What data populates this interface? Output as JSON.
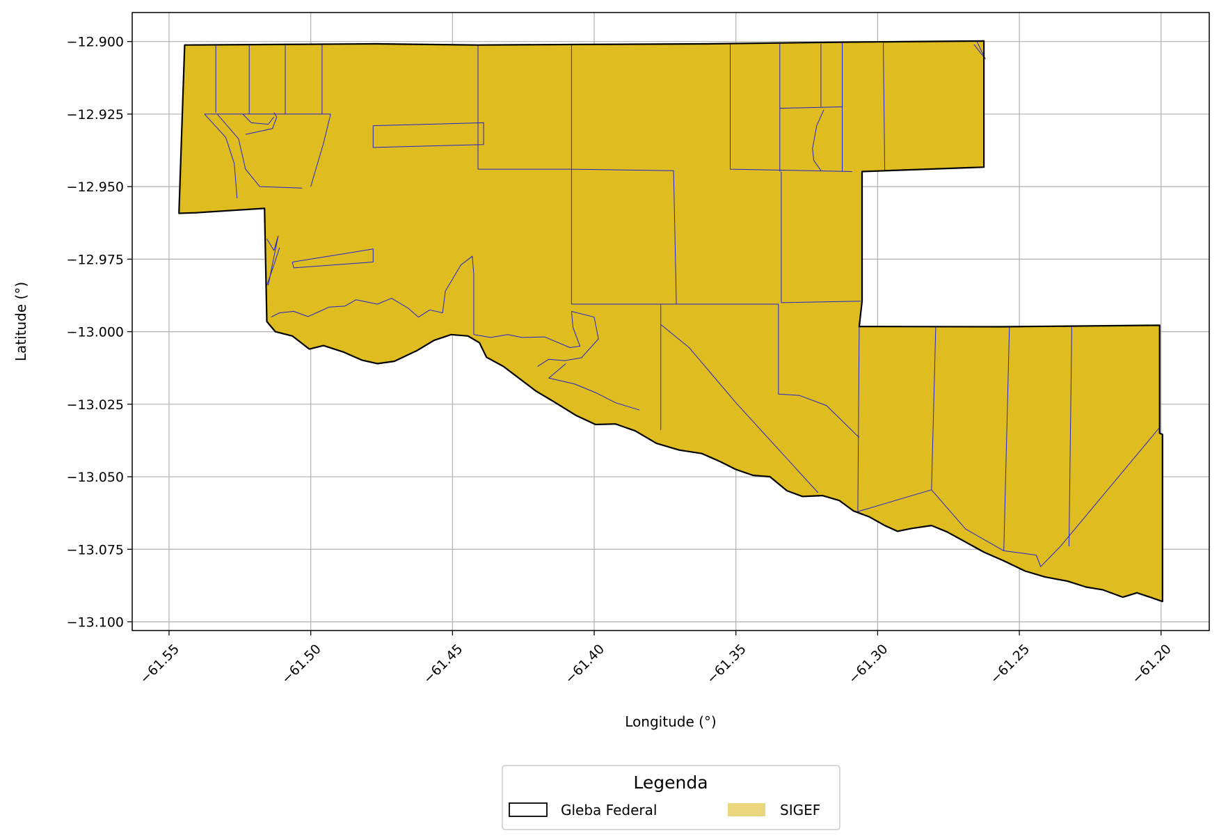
{
  "chart_data": {
    "type": "map",
    "xlabel": "Longitude (°)",
    "ylabel": "Latitude (°)",
    "xlim": [
      -61.563,
      -61.183
    ],
    "ylim": [
      -13.103,
      -12.89
    ],
    "x_ticks": [
      -61.55,
      -61.5,
      -61.45,
      -61.4,
      -61.35,
      -61.3,
      -61.25,
      -61.2
    ],
    "x_tick_labels": [
      "−61.55",
      "−61.50",
      "−61.45",
      "−61.40",
      "−61.35",
      "−61.30",
      "−61.25",
      "−61.20"
    ],
    "y_ticks": [
      -12.9,
      -12.925,
      -12.95,
      -12.975,
      -13.0,
      -13.025,
      -13.05,
      -13.075,
      -13.1
    ],
    "y_tick_labels": [
      "−12.900",
      "−12.925",
      "−12.950",
      "−12.975",
      "−13.000",
      "−13.025",
      "−13.050",
      "−13.075",
      "−13.100"
    ],
    "grid": true,
    "legend": {
      "title": "Legenda",
      "position": "bottom-center",
      "entries": [
        {
          "label": "Gleba Federal",
          "style": "outline",
          "edge_color": "#000000"
        },
        {
          "label": "SIGEF",
          "style": "fill",
          "fill_color": "#ead67c"
        }
      ]
    },
    "colors": {
      "parcel_fill": "#dfbd20",
      "parcel_edge": "#2222cc",
      "gleba_edge": "#000000",
      "grid": "#b0b0b0"
    },
    "gleba_federal_outline": [
      [
        -61.5445,
        -12.9012
      ],
      [
        -61.512,
        -12.901
      ],
      [
        -61.477,
        -12.9008
      ],
      [
        -61.441,
        -12.9012
      ],
      [
        -61.405,
        -12.901
      ],
      [
        -61.36,
        -12.9008
      ],
      [
        -61.31,
        -12.9002
      ],
      [
        -61.2625,
        -12.8998
      ],
      [
        -61.2625,
        -12.9433
      ],
      [
        -61.3055,
        -12.9448
      ],
      [
        -61.3055,
        -12.9895
      ],
      [
        -61.3065,
        -12.9982
      ],
      [
        -61.2565,
        -12.9983
      ],
      [
        -61.2005,
        -12.9978
      ],
      [
        -61.2005,
        -13.035
      ],
      [
        -61.1995,
        -13.0354
      ],
      [
        -61.1995,
        -13.093
      ],
      [
        -61.203,
        -13.0918
      ],
      [
        -61.2085,
        -13.09
      ],
      [
        -61.2135,
        -13.0915
      ],
      [
        -61.2205,
        -13.089
      ],
      [
        -61.2265,
        -13.088
      ],
      [
        -61.233,
        -13.086
      ],
      [
        -61.241,
        -13.0845
      ],
      [
        -61.248,
        -13.0825
      ],
      [
        -61.2555,
        -13.079
      ],
      [
        -61.2625,
        -13.076
      ],
      [
        -61.269,
        -13.0725
      ],
      [
        -61.2755,
        -13.069
      ],
      [
        -61.281,
        -13.0668
      ],
      [
        -61.288,
        -13.0678
      ],
      [
        -61.293,
        -13.0688
      ],
      [
        -61.2975,
        -13.0668
      ],
      [
        -61.303,
        -13.0638
      ],
      [
        -61.3085,
        -13.0618
      ],
      [
        -61.3135,
        -13.0582
      ],
      [
        -61.3195,
        -13.0565
      ],
      [
        -61.3265,
        -13.0568
      ],
      [
        -61.332,
        -13.0548
      ],
      [
        -61.338,
        -13.05
      ],
      [
        -61.344,
        -13.0495
      ],
      [
        -61.35,
        -13.0475
      ],
      [
        -61.3555,
        -13.0448
      ],
      [
        -61.362,
        -13.042
      ],
      [
        -61.37,
        -13.0408
      ],
      [
        -61.378,
        -13.0385
      ],
      [
        -61.3855,
        -13.0342
      ],
      [
        -61.3925,
        -13.0318
      ],
      [
        -61.3995,
        -13.032
      ],
      [
        -61.4065,
        -13.0288
      ],
      [
        -61.4145,
        -13.024
      ],
      [
        -61.4205,
        -13.0205
      ],
      [
        -61.4255,
        -13.0168
      ],
      [
        -61.432,
        -13.012
      ],
      [
        -61.438,
        -13.0088
      ],
      [
        -61.4405,
        -13.0038
      ],
      [
        -61.4445,
        -13.0015
      ],
      [
        -61.4505,
        -13.001
      ],
      [
        -61.4565,
        -13.003
      ],
      [
        -61.4625,
        -13.0065
      ],
      [
        -61.4705,
        -13.0102
      ],
      [
        -61.4765,
        -13.011
      ],
      [
        -61.482,
        -13.0098
      ],
      [
        -61.4885,
        -13.007
      ],
      [
        -61.4955,
        -13.0048
      ],
      [
        -61.5005,
        -13.006
      ],
      [
        -61.5065,
        -13.0015
      ],
      [
        -61.5125,
        -13.0
      ],
      [
        -61.5155,
        -12.9965
      ],
      [
        -61.5163,
        -12.9575
      ],
      [
        -61.5405,
        -12.959
      ],
      [
        -61.5465,
        -12.9592
      ],
      [
        -61.5445,
        -12.9012
      ]
    ],
    "sigef_parcel_lines": [
      [
        [
          -61.5335,
          -12.901
        ],
        [
          -61.5335,
          -12.9245
        ]
      ],
      [
        [
          -61.5217,
          -12.901
        ],
        [
          -61.5217,
          -12.925
        ]
      ],
      [
        [
          -61.509,
          -12.901
        ],
        [
          -61.509,
          -12.925
        ]
      ],
      [
        [
          -61.496,
          -12.901
        ],
        [
          -61.496,
          -12.925
        ]
      ],
      [
        [
          -61.5375,
          -12.925
        ],
        [
          -61.493,
          -12.925
        ]
      ],
      [
        [
          -61.5375,
          -12.925
        ],
        [
          -61.53,
          -12.933
        ],
        [
          -61.527,
          -12.942
        ],
        [
          -61.526,
          -12.954
        ]
      ],
      [
        [
          -61.533,
          -12.925
        ],
        [
          -61.5255,
          -12.9335
        ],
        [
          -61.523,
          -12.944
        ],
        [
          -61.518,
          -12.95
        ],
        [
          -61.503,
          -12.9505
        ]
      ],
      [
        [
          -61.524,
          -12.925
        ],
        [
          -61.521,
          -12.928
        ],
        [
          -61.515,
          -12.9285
        ],
        [
          -61.513,
          -12.926
        ]
      ],
      [
        [
          -61.523,
          -12.932
        ],
        [
          -61.5135,
          -12.93
        ],
        [
          -61.512,
          -12.926
        ],
        [
          -61.513,
          -12.9245
        ]
      ],
      [
        [
          -61.493,
          -12.925
        ],
        [
          -61.4955,
          -12.935
        ],
        [
          -61.5,
          -12.95
        ]
      ],
      [
        [
          -61.478,
          -12.929
        ],
        [
          -61.439,
          -12.928
        ],
        [
          -61.439,
          -12.9355
        ],
        [
          -61.478,
          -12.9365
        ],
        [
          -61.478,
          -12.929
        ]
      ],
      [
        [
          -61.441,
          -12.9012
        ],
        [
          -61.441,
          -12.944
        ]
      ],
      [
        [
          -61.441,
          -12.944
        ],
        [
          -61.408,
          -12.944
        ],
        [
          -61.372,
          -12.9445
        ],
        [
          -61.371,
          -12.9905
        ],
        [
          -61.408,
          -12.9905
        ],
        [
          -61.408,
          -12.901
        ]
      ],
      [
        [
          -61.352,
          -12.9008
        ],
        [
          -61.352,
          -12.944
        ],
        [
          -61.309,
          -12.9448
        ]
      ],
      [
        [
          -61.3345,
          -12.9008
        ],
        [
          -61.3345,
          -12.9448
        ]
      ],
      [
        [
          -61.32,
          -12.9008
        ],
        [
          -61.32,
          -12.9225
        ]
      ],
      [
        [
          -61.3125,
          -12.9005
        ],
        [
          -61.3125,
          -12.9448
        ]
      ],
      [
        [
          -61.298,
          -12.9003
        ],
        [
          -61.2975,
          -12.9445
        ]
      ],
      [
        [
          -61.3345,
          -12.923
        ],
        [
          -61.3125,
          -12.9225
        ]
      ],
      [
        [
          -61.319,
          -12.9235
        ],
        [
          -61.3215,
          -12.929
        ],
        [
          -61.323,
          -12.937
        ],
        [
          -61.3225,
          -12.941
        ],
        [
          -61.32,
          -12.9445
        ]
      ],
      [
        [
          -61.265,
          -12.9
        ],
        [
          -61.262,
          -12.906
        ],
        [
          -61.266,
          -12.901
        ]
      ],
      [
        [
          -61.334,
          -12.9448
        ],
        [
          -61.334,
          -12.99
        ],
        [
          -61.306,
          -12.9895
        ]
      ],
      [
        [
          -61.515,
          -12.984
        ],
        [
          -61.5115,
          -12.967
        ],
        [
          -61.513,
          -12.972
        ],
        [
          -61.5155,
          -12.968
        ]
      ],
      [
        [
          -61.5155,
          -12.984
        ],
        [
          -61.513,
          -12.977
        ],
        [
          -61.511,
          -12.971
        ]
      ],
      [
        [
          -61.514,
          -12.995
        ],
        [
          -61.511,
          -12.9935
        ],
        [
          -61.506,
          -12.993
        ],
        [
          -61.501,
          -12.9948
        ],
        [
          -61.498,
          -12.9935
        ],
        [
          -61.4935,
          -12.9915
        ],
        [
          -61.488,
          -12.9912
        ],
        [
          -61.484,
          -12.989
        ],
        [
          -61.4765,
          -12.9905
        ],
        [
          -61.4715,
          -12.9885
        ],
        [
          -61.4655,
          -12.992
        ],
        [
          -61.462,
          -12.995
        ],
        [
          -61.458,
          -12.9925
        ],
        [
          -61.4535,
          -12.9935
        ],
        [
          -61.4525,
          -12.986
        ],
        [
          -61.447,
          -12.977
        ],
        [
          -61.443,
          -12.974
        ],
        [
          -61.4425,
          -12.98
        ],
        [
          -61.4425,
          -13.001
        ]
      ],
      [
        [
          -61.5065,
          -12.976
        ],
        [
          -61.478,
          -12.9715
        ],
        [
          -61.478,
          -12.976
        ],
        [
          -61.506,
          -12.978
        ],
        [
          -61.5065,
          -12.976
        ]
      ],
      [
        [
          -61.4425,
          -13.001
        ],
        [
          -61.4365,
          -13.002
        ],
        [
          -61.4305,
          -13.001
        ],
        [
          -61.4255,
          -13.002
        ],
        [
          -61.4175,
          -13.0018
        ],
        [
          -61.4085,
          -13.0055
        ],
        [
          -61.405,
          -13.005
        ],
        [
          -61.4075,
          -12.9985
        ],
        [
          -61.408,
          -12.993
        ]
      ],
      [
        [
          -61.408,
          -12.993
        ],
        [
          -61.4,
          -12.995
        ],
        [
          -61.3985,
          -13.0025
        ],
        [
          -61.4045,
          -13.009
        ],
        [
          -61.4105,
          -13.01
        ],
        [
          -61.416,
          -13.0095
        ],
        [
          -61.42,
          -13.012
        ]
      ],
      [
        [
          -61.41,
          -13.011
        ],
        [
          -61.416,
          -13.016
        ],
        [
          -61.407,
          -13.018
        ],
        [
          -61.3995,
          -13.021
        ],
        [
          -61.3925,
          -13.0245
        ],
        [
          -61.384,
          -13.027
        ]
      ],
      [
        [
          -61.3765,
          -12.9905
        ],
        [
          -61.3765,
          -13.034
        ]
      ],
      [
        [
          -61.3765,
          -12.9905
        ],
        [
          -61.335,
          -12.9905
        ],
        [
          -61.335,
          -13.0215
        ],
        [
          -61.3275,
          -13.022
        ],
        [
          -61.318,
          -13.0255
        ],
        [
          -61.3065,
          -13.0365
        ]
      ],
      [
        [
          -61.3765,
          -12.9975
        ],
        [
          -61.3665,
          -13.0055
        ],
        [
          -61.35,
          -13.0245
        ],
        [
          -61.321,
          -13.0555
        ]
      ],
      [
        [
          -61.3065,
          -12.9982
        ],
        [
          -61.307,
          -13.062
        ]
      ],
      [
        [
          -61.307,
          -13.062
        ],
        [
          -61.281,
          -13.0545
        ],
        [
          -61.269,
          -13.068
        ],
        [
          -61.2555,
          -13.0755
        ],
        [
          -61.244,
          -13.077
        ],
        [
          -61.2425,
          -13.081
        ]
      ],
      [
        [
          -61.2795,
          -12.9982
        ],
        [
          -61.281,
          -13.0545
        ]
      ],
      [
        [
          -61.2535,
          -12.9983
        ],
        [
          -61.2555,
          -13.0755
        ]
      ],
      [
        [
          -61.2315,
          -12.998
        ],
        [
          -61.2325,
          -13.074
        ]
      ],
      [
        [
          -61.2425,
          -13.081
        ],
        [
          -61.2355,
          -13.074
        ],
        [
          -61.2005,
          -13.033
        ]
      ]
    ]
  }
}
